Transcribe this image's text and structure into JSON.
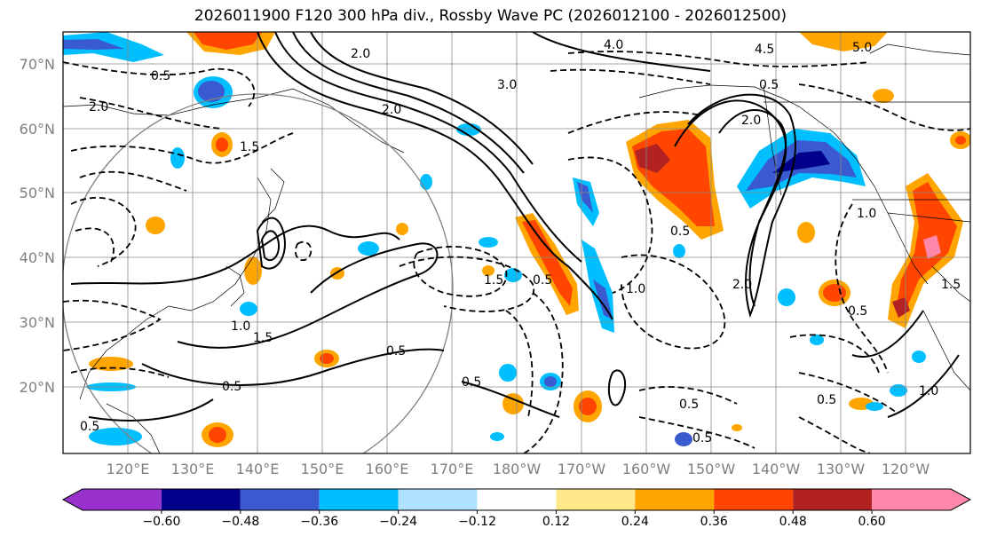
{
  "title": "2026011900 F120 300 hPa div., Rossby Wave PC (2026012100 - 2026012500)",
  "map": {
    "lat_labels": [
      "70°N",
      "60°N",
      "50°N",
      "40°N",
      "30°N",
      "20°N"
    ],
    "lon_labels": [
      "120°E",
      "130°E",
      "140°E",
      "150°E",
      "160°E",
      "170°E",
      "180°W",
      "170°W",
      "160°W",
      "150°W",
      "140°W",
      "130°W",
      "120°W"
    ],
    "contour_labels": [
      "4.0",
      "4.5",
      "5.0",
      "3.0",
      "2.0",
      "2.0",
      "0.5",
      "1.5",
      "2.0",
      "0.5",
      "1.0",
      "0.5",
      "0.5",
      "1.5",
      "0.5",
      "0.5",
      "1.0",
      "1.0",
      "0.5",
      "0.5",
      "0.5",
      "0.5",
      "1.0",
      "1.5",
      "2.0",
      "0.5",
      "1.5",
      "2.0",
      "0.5"
    ]
  },
  "colorbar": {
    "ticks": [
      "−0.60",
      "−0.48",
      "−0.36",
      "−0.24",
      "−0.12",
      "0.12",
      "0.24",
      "0.36",
      "0.48",
      "0.60"
    ],
    "colors": [
      "#9932cc",
      "#00008b",
      "#3a5bd0",
      "#00bfff",
      "#b0e2ff",
      "#ffffff",
      "#ffe88a",
      "#ffa500",
      "#ff4500",
      "#b22222",
      "#ff88aa"
    ]
  },
  "colors": {
    "grid": "#888888",
    "axis_label": "#7f7f7f"
  }
}
